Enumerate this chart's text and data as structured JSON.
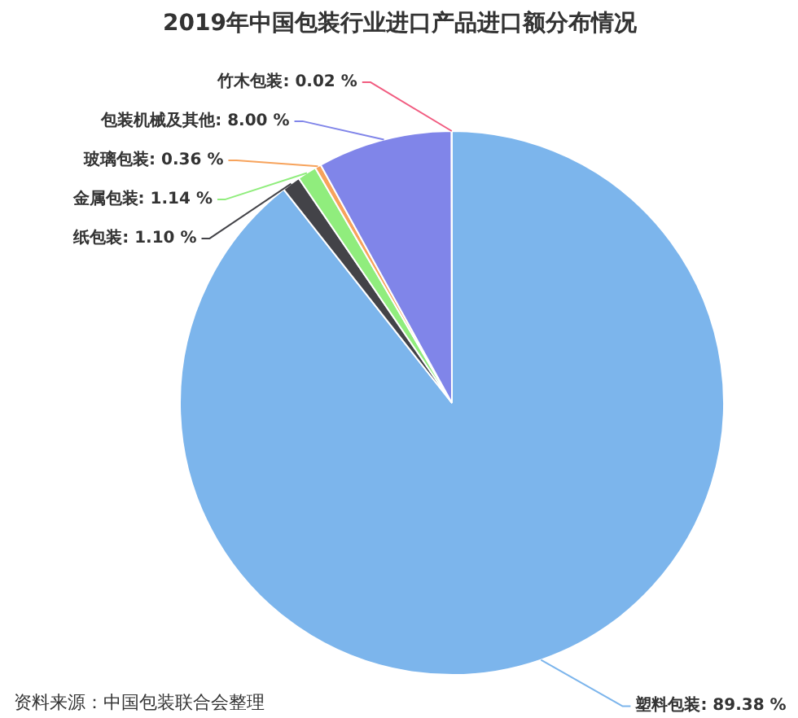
{
  "chart_data": {
    "type": "pie",
    "title": "2019年中国包装行业进口产品进口额分布情况",
    "categories": [
      "塑料包装",
      "纸包装",
      "金属包装",
      "玻璃包装",
      "包装机械及其他",
      "竹木包装"
    ],
    "values": [
      89.38,
      1.1,
      1.14,
      0.36,
      8.0,
      0.02
    ],
    "colors": [
      "#7cb5ec",
      "#434348",
      "#90ed7d",
      "#f7a35c",
      "#8085e9",
      "#f15c80"
    ],
    "value_labels": [
      "89.38 %",
      "1.10 %",
      "1.14 %",
      "0.36 %",
      "8.00 %",
      "0.02 %"
    ],
    "annotations": [
      "资料来源：中国包装联合会整理"
    ]
  }
}
